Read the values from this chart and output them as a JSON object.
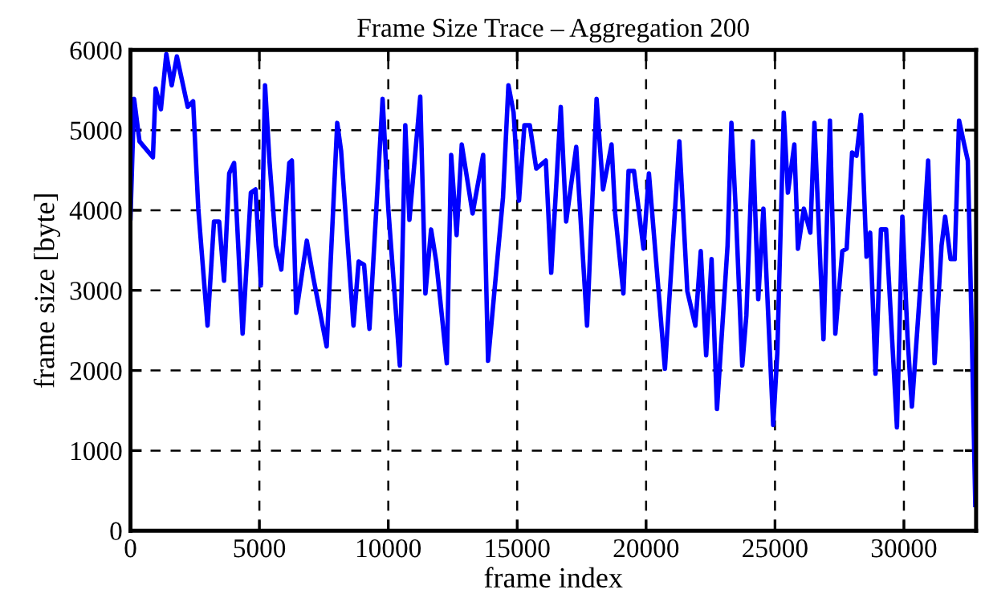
{
  "chart_data": {
    "type": "line",
    "title": "Frame Size Trace – Aggregation 200",
    "xlabel": "frame index",
    "ylabel": "frame size [byte]",
    "xlim": [
      0,
      32800
    ],
    "ylim": [
      0,
      6000
    ],
    "xticks": [
      0,
      5000,
      10000,
      15000,
      20000,
      25000,
      30000
    ],
    "yticks": [
      0,
      1000,
      2000,
      3000,
      4000,
      5000,
      6000
    ],
    "grid": true,
    "marker": "none",
    "line_style": "solid",
    "series": [
      {
        "color": "#0000ff",
        "x": [
          0,
          140,
          350,
          870,
          975,
          1180,
          1390,
          1600,
          1800,
          2220,
          2430,
          2630,
          2990,
          3240,
          3440,
          3630,
          3830,
          4020,
          4350,
          4670,
          4850,
          5060,
          5220,
          5390,
          5640,
          5850,
          6160,
          6260,
          6430,
          6840,
          7090,
          7610,
          8020,
          8170,
          8650,
          8850,
          9060,
          9270,
          9780,
          10000,
          10450,
          10660,
          10820,
          11240,
          11440,
          11660,
          11860,
          12270,
          12440,
          12650,
          12850,
          13270,
          13680,
          13870,
          14450,
          14660,
          14860,
          15070,
          15280,
          15490,
          15740,
          16110,
          16320,
          16690,
          16900,
          17290,
          17710,
          18080,
          18330,
          18660,
          18800,
          19120,
          19320,
          19530,
          19900,
          20110,
          20730,
          21290,
          21600,
          21910,
          22120,
          22330,
          22540,
          22750,
          23160,
          23310,
          23480,
          23730,
          23890,
          24140,
          24350,
          24550,
          24930,
          25090,
          25340,
          25500,
          25750,
          25890,
          26120,
          26370,
          26530,
          26880,
          27130,
          27340,
          27610,
          27780,
          27990,
          28160,
          28340,
          28550,
          28690,
          28900,
          29110,
          29310,
          29730,
          29940,
          30140,
          30310,
          30690,
          30940,
          31190,
          31460,
          31600,
          31810,
          31970,
          32140,
          32340,
          32480,
          32640,
          32770
        ],
        "values": [
          3900,
          5390,
          4860,
          4660,
          5520,
          5260,
          5950,
          5560,
          5920,
          5290,
          5360,
          4020,
          2560,
          3860,
          3860,
          3120,
          4460,
          4590,
          2460,
          4220,
          4260,
          3060,
          5560,
          4620,
          3560,
          3260,
          4590,
          4620,
          2720,
          3620,
          3160,
          2300,
          5090,
          4740,
          2560,
          3360,
          3320,
          2520,
          5390,
          4020,
          2060,
          5060,
          3880,
          5420,
          2960,
          3760,
          3360,
          2090,
          4690,
          3690,
          4820,
          3960,
          4690,
          2120,
          4160,
          5560,
          5220,
          4120,
          5060,
          5060,
          4520,
          4620,
          3220,
          5290,
          3860,
          4790,
          2560,
          5390,
          4260,
          4820,
          3960,
          2960,
          4490,
          4490,
          3520,
          4460,
          2020,
          4860,
          2990,
          2560,
          3490,
          2190,
          3390,
          1520,
          3560,
          5090,
          3990,
          2060,
          2690,
          4860,
          2890,
          4020,
          1320,
          2220,
          5220,
          4220,
          4820,
          3520,
          4020,
          3720,
          5090,
          2390,
          5120,
          2460,
          3490,
          3520,
          4720,
          4680,
          5190,
          3420,
          3720,
          1960,
          3760,
          3760,
          1290,
          3920,
          2420,
          1550,
          3290,
          4620,
          2090,
          3560,
          3920,
          3390,
          3390,
          5120,
          4820,
          4620,
          2360,
          320
        ]
      }
    ]
  }
}
